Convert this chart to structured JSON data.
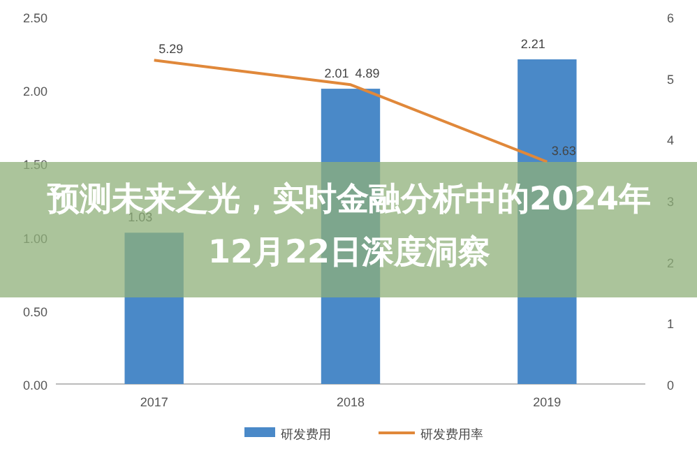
{
  "chart_data": {
    "type": "bar",
    "title": "预测未来之光，实时金融分析中的2024年12月22日深度洞察",
    "categories": [
      "2017",
      "2018",
      "2019"
    ],
    "series": [
      {
        "name": "研发费用",
        "color": "#4a89c8",
        "values": [
          1.03,
          2.01,
          2.21
        ],
        "value_labels": [
          "1.03",
          "2.01",
          "2.21"
        ]
      },
      {
        "name": "研发费用率",
        "type": "line",
        "axis": "y2",
        "color": "#e0883a",
        "values": [
          5.29,
          4.89,
          3.63
        ],
        "value_labels": [
          "5.29",
          "4.89",
          "3.63"
        ]
      }
    ],
    "ylim": [
      0,
      2.5
    ],
    "yticks": [
      {
        "value": 0,
        "label": "0.00"
      },
      {
        "value": 0.5,
        "label": "0.50"
      },
      {
        "value": 1,
        "label": "1.00"
      },
      {
        "value": 1.5,
        "label": "1.50"
      },
      {
        "value": 2,
        "label": "2.00"
      },
      {
        "value": 2.5,
        "label": "2.50"
      }
    ],
    "y2lim": [
      0,
      6
    ],
    "y2ticks": [
      0,
      1,
      2,
      3,
      4,
      5,
      6
    ],
    "legend": "bottom",
    "marker": "none",
    "line_style": "solid"
  }
}
